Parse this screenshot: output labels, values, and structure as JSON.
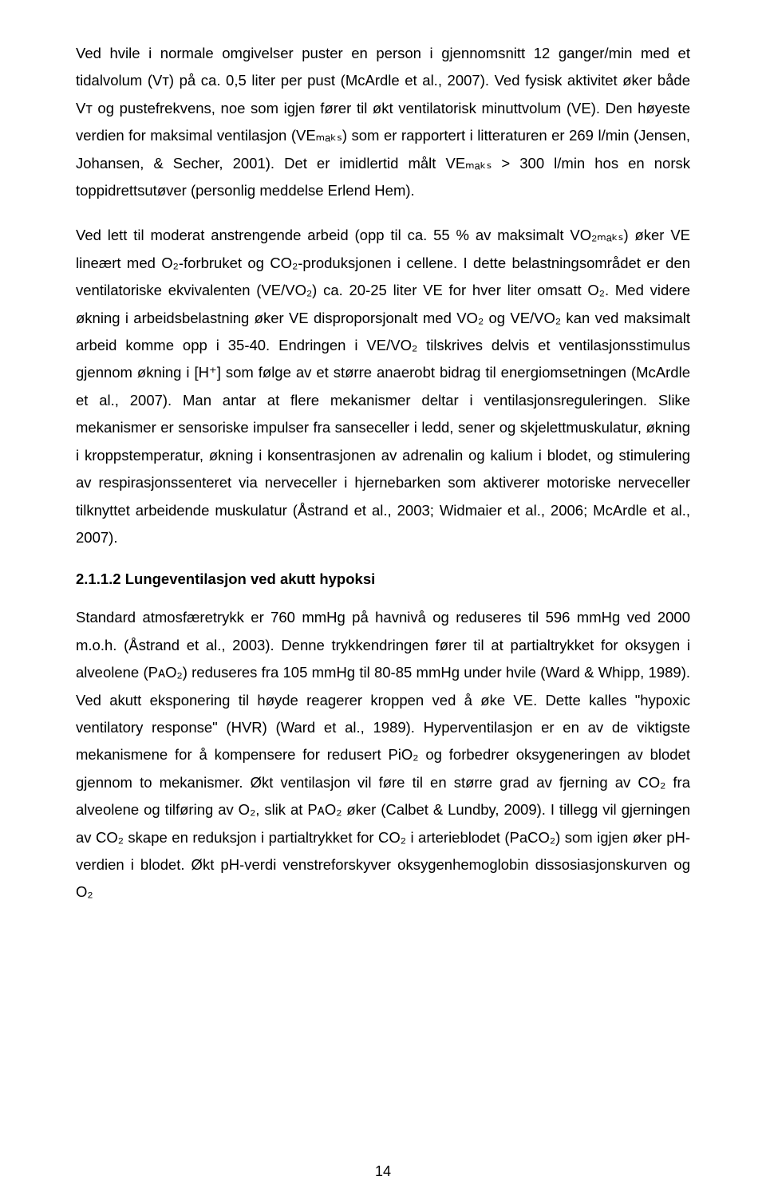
{
  "paragraphs": {
    "p1": "Ved hvile i normale omgivelser puster en person i gjennomsnitt 12 ganger/min med et tidalvolum (Vᴛ) på ca. 0,5 liter per pust (McArdle et al., 2007). Ved fysisk aktivitet øker både Vᴛ og pustefrekvens, noe som igjen fører til økt ventilatorisk minuttvolum (VE). Den høyeste verdien for maksimal ventilasjon (VEₘₐₖₛ) som er rapportert i litteraturen er 269 l/min (Jensen, Johansen, & Secher, 2001). Det er imidlertid målt VEₘₐₖₛ > 300 l/min hos en norsk toppidrettsutøver (personlig meddelse Erlend Hem).",
    "p2": "Ved lett til moderat anstrengende arbeid (opp til ca. 55 % av maksimalt VO₂ₘₐₖₛ) øker VE lineært med O₂-forbruket og CO₂-produksjonen i cellene. I dette belastningsområdet er den ventilatoriske ekvivalenten (VE/VO₂) ca. 20-25 liter VE for hver liter omsatt O₂. Med videre økning i arbeidsbelastning øker VE disproporsjonalt med VO₂ og VE/VO₂ kan ved maksimalt arbeid komme opp i 35-40. Endringen i VE/VO₂ tilskrives delvis et ventilasjonsstimulus gjennom økning i [H⁺] som følge av et større anaerobt bidrag til energiomsetningen (McArdle et al., 2007). Man antar at flere mekanismer deltar i ventilasjonsreguleringen. Slike mekanismer er sensoriske impulser fra sanseceller i ledd, sener og skjelettmuskulatur, økning i kroppstemperatur, økning i konsentrasjonen av adrenalin og kalium i blodet, og stimulering av respirasjonssenteret via nerveceller i hjernebarken som aktiverer motoriske nerveceller tilknyttet arbeidende muskulatur (Åstrand et al., 2003; Widmaier et al., 2006; McArdle et al., 2007).",
    "heading": "2.1.1.2  Lungeventilasjon ved akutt hypoksi",
    "p3": "Standard atmosfæretrykk er 760 mmHg på havnivå og reduseres til 596 mmHg ved 2000 m.o.h. (Åstrand et al., 2003). Denne trykkendringen fører til at partialtrykket for oksygen i alveolene (PᴀO₂) reduseres fra 105 mmHg til 80-85 mmHg under hvile (Ward & Whipp, 1989). Ved akutt eksponering til høyde reagerer kroppen ved å øke VE. Dette kalles \"hypoxic ventilatory response\" (HVR) (Ward et al., 1989). Hyperventilasjon er en av de viktigste mekanismene for å kompensere for redusert PiO₂ og forbedrer oksygeneringen av blodet gjennom to mekanismer. Økt ventilasjon vil føre til en større grad av fjerning av CO₂ fra alveolene og tilføring av O₂, slik at PᴀO₂ øker (Calbet & Lundby, 2009). I tillegg vil gjerningen av CO₂ skape en reduksjon i partialtrykket for CO₂ i arterieblodet (PaCO₂) som igjen øker pH-verdien i blodet. Økt pH-verdi venstreforskyver oksygenhemoglobin dissosiasjonskurven og O₂"
  },
  "pageNumber": "14"
}
